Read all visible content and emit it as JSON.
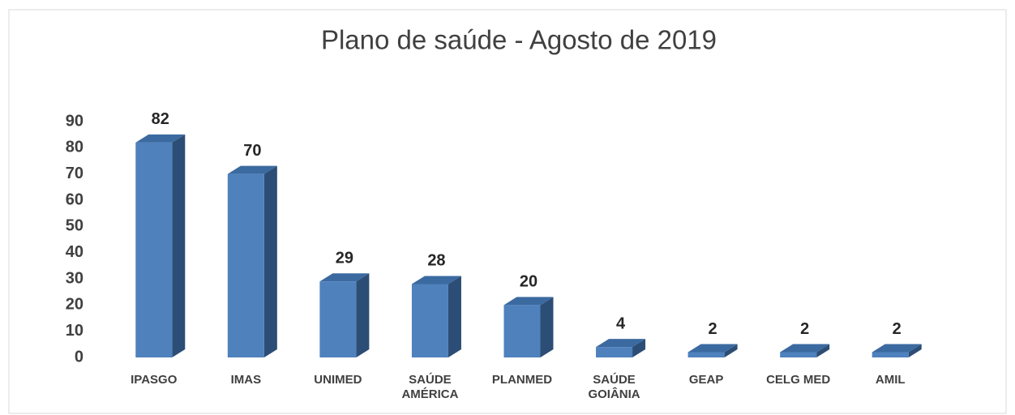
{
  "chart_data": {
    "type": "bar3d",
    "title": "Plano de saúde - Agosto de 2019",
    "categories": [
      "IPASGO",
      "IMAS",
      "UNIMED",
      "SAÚDE AMÉRICA",
      "PLANMED",
      "SAÚDE GOIÂNIA",
      "GEAP",
      "CELG MED",
      "AMIL"
    ],
    "values": [
      82,
      70,
      29,
      28,
      20,
      4,
      2,
      2,
      2
    ],
    "color": "#4f81bd",
    "ylim": [
      0,
      90
    ],
    "yticks": [
      0,
      10,
      20,
      30,
      40,
      50,
      60,
      70,
      80,
      90
    ],
    "grid": false
  }
}
